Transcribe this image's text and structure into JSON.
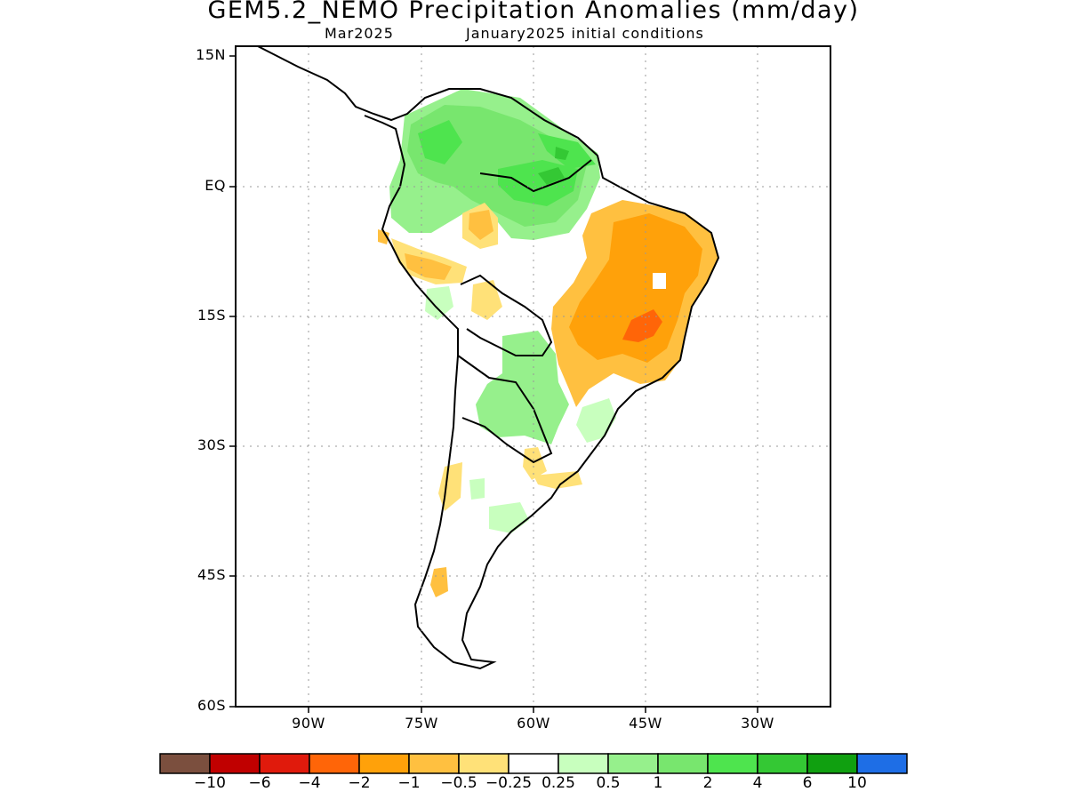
{
  "title": "GEM5.2_NEMO Precipitation Anomalies (mm/day)",
  "subtitle_left": "Mar2025",
  "subtitle_right": "January2025 initial conditions",
  "map": {
    "region": "South America",
    "lat_labels": [
      "15N",
      "EQ",
      "15S",
      "30S",
      "45S",
      "60S"
    ],
    "lon_labels": [
      "90W",
      "75W",
      "60W",
      "45W",
      "30W"
    ],
    "lat_range": [
      -60,
      15
    ],
    "lon_range": [
      -100,
      -20
    ],
    "grid": "dotted"
  },
  "colorbar": {
    "colors": [
      "#7b4f3e",
      "#c00000",
      "#e01a0c",
      "#ff6508",
      "#ffa10a",
      "#ffc040",
      "#ffe178",
      "#ffffff",
      "#c8ffbe",
      "#96f08c",
      "#78e66e",
      "#4ee44e",
      "#34c834",
      "#10a010",
      "#1e6ee6"
    ],
    "labels": [
      "−10",
      "−6",
      "−4",
      "−2",
      "−1",
      "−0.5",
      "−0.25",
      "0.25",
      "0.5",
      "1",
      "2",
      "4",
      "6",
      "10"
    ]
  }
}
